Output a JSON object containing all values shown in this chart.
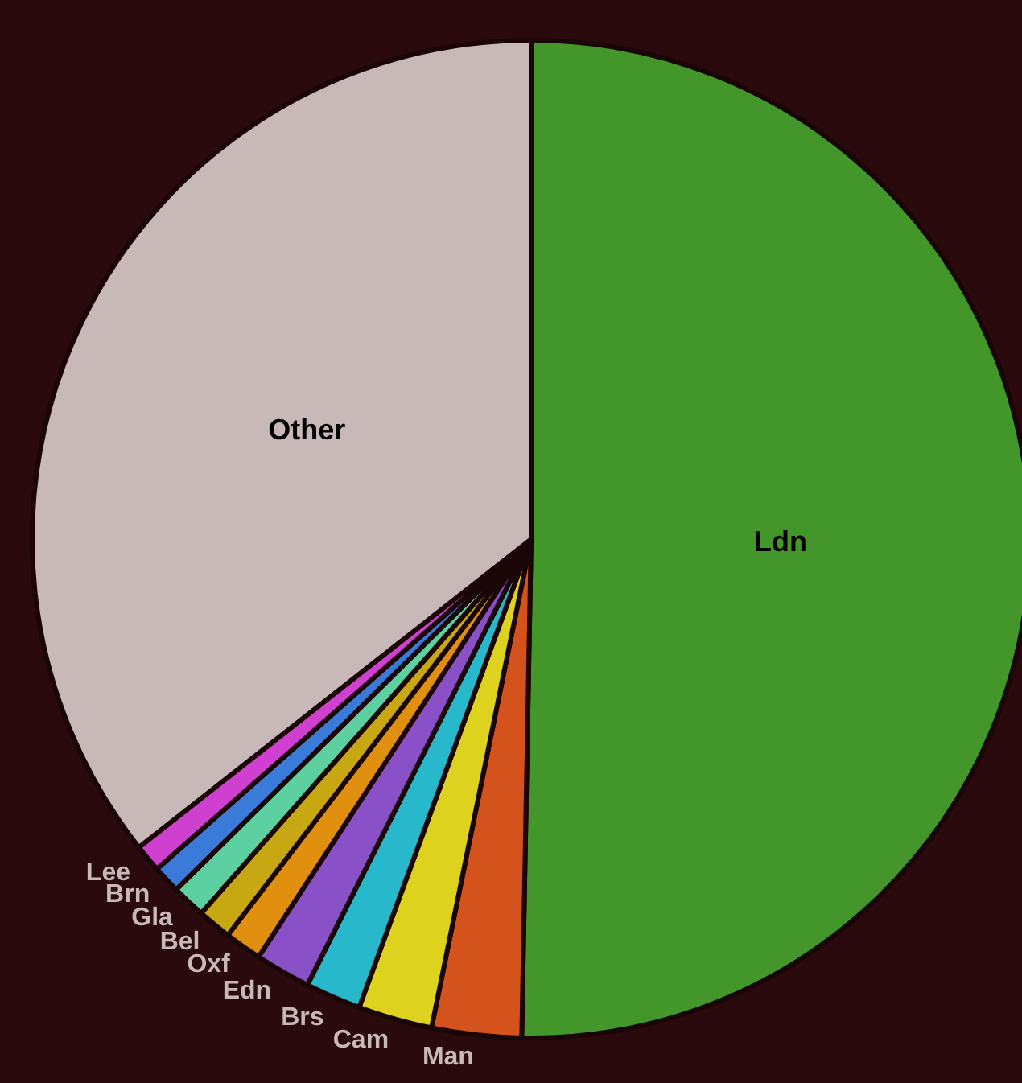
{
  "chart_data": {
    "type": "pie",
    "categories": [
      "Ldn",
      "Man",
      "Cam",
      "Brs",
      "Edn",
      "Oxf",
      "Bel",
      "Gla",
      "Brn",
      "Lee",
      "Other"
    ],
    "values": [
      50.3,
      2.9,
      2.4,
      1.8,
      1.8,
      1.2,
      1.1,
      1.1,
      0.9,
      0.9,
      35.6
    ],
    "colors": [
      "#43962a",
      "#d4521c",
      "#ddd21e",
      "#28b8cc",
      "#8a50c8",
      "#e0900e",
      "#c8a812",
      "#5cd0a0",
      "#3a7ad8",
      "#d040d0",
      "#c8b8b8"
    ]
  }
}
